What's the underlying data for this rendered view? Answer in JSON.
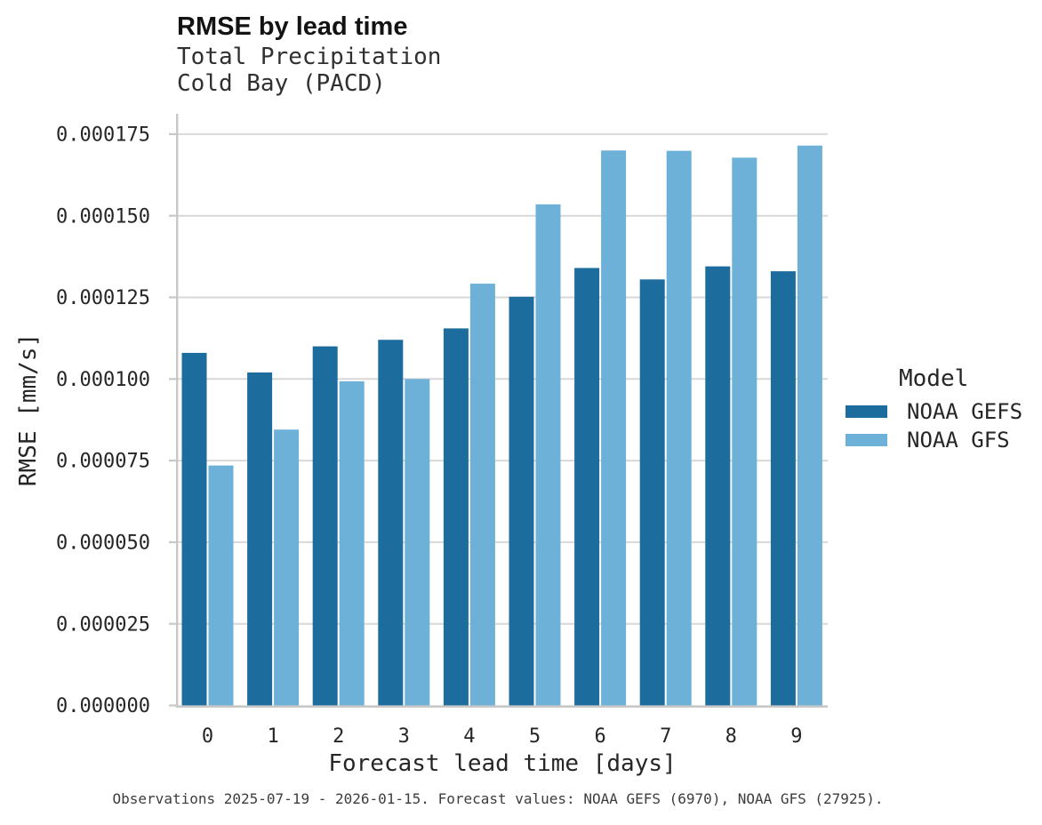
{
  "figure": {
    "title": "RMSE by lead time",
    "subtitle_line1": "Total Precipitation",
    "subtitle_line2": "Cold Bay (PACD)",
    "caption": "Observations 2025-07-19 - 2026-01-15. Forecast values: NOAA GEFS (6970), NOAA GFS (27925)."
  },
  "chart_data": {
    "type": "bar",
    "title": "RMSE by lead time",
    "subtitle": [
      "Total Precipitation",
      "Cold Bay (PACD)"
    ],
    "xlabel": "Forecast lead time [days]",
    "ylabel": "RMSE [mm/s]",
    "categories": [
      "0",
      "1",
      "2",
      "3",
      "4",
      "5",
      "6",
      "7",
      "8",
      "9"
    ],
    "series": [
      {
        "name": "NOAA GEFS",
        "color": "#1c6d9e",
        "values": [
          0.000108,
          0.000102,
          0.00011,
          0.000112,
          0.0001155,
          0.0001252,
          0.000134,
          0.0001305,
          0.0001345,
          0.000133
        ]
      },
      {
        "name": "NOAA GFS",
        "color": "#6db1d9",
        "values": [
          7.35e-05,
          8.45e-05,
          9.93e-05,
          0.0001,
          0.0001292,
          0.0001535,
          0.00017,
          0.0001699,
          0.0001678,
          0.0001715
        ]
      }
    ],
    "ylim": [
      0,
      0.00018
    ],
    "ytick_labels": [
      "0.000000",
      "0.000025",
      "0.000050",
      "0.000075",
      "0.000100",
      "0.000125",
      "0.000150",
      "0.000175"
    ],
    "grid": true,
    "legend_title": "Model",
    "legend_position": "right-center"
  },
  "legend": {
    "title": "Model",
    "items": [
      {
        "label": "NOAA GEFS",
        "color": "#1c6d9e"
      },
      {
        "label": "NOAA GFS",
        "color": "#6db1d9"
      }
    ]
  },
  "colors": {
    "gefs_bar": "#1c6d9e",
    "gfs_bar": "#6db1d9",
    "gridline": "#d8d8d8",
    "axis_spine": "#c8c8c8",
    "text": "#262626",
    "title_text": "#131313",
    "caption_text": "#3d3d3d",
    "background": "#ffffff"
  }
}
